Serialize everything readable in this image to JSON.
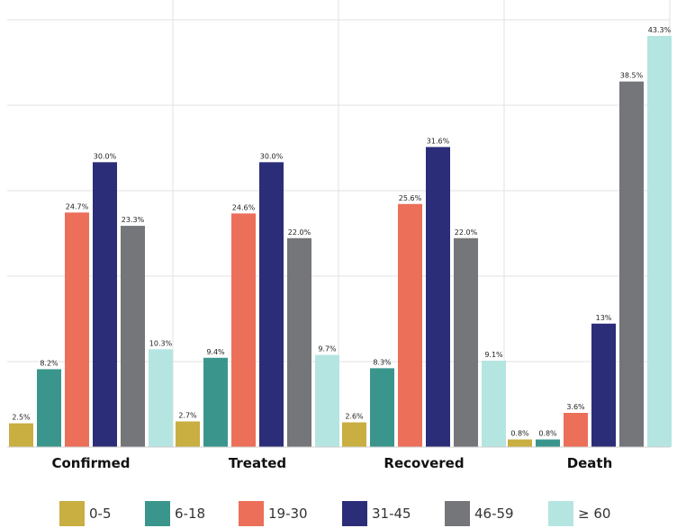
{
  "chart_data": {
    "type": "bar",
    "categories": [
      "Confirmed",
      "Treated",
      "Recovered",
      "Death"
    ],
    "series": [
      {
        "name": "0-5",
        "color": "#c9ae42",
        "values": [
          2.5,
          2.7,
          2.6,
          0.8
        ],
        "labels": [
          "2.5%",
          "2.7%",
          "2.6%",
          "0.8%"
        ]
      },
      {
        "name": "6-18",
        "color": "#3a968c",
        "values": [
          8.2,
          9.4,
          8.3,
          0.8
        ],
        "labels": [
          "8.2%",
          "9.4%",
          "8.3%",
          "0.8%"
        ]
      },
      {
        "name": "19-30",
        "color": "#ec6f59",
        "values": [
          24.7,
          24.6,
          25.6,
          3.6
        ],
        "labels": [
          "24.7%",
          "24.6%",
          "25.6%",
          "3.6%"
        ]
      },
      {
        "name": "31-45",
        "color": "#2c2d78",
        "values": [
          30.0,
          30.0,
          31.6,
          13
        ],
        "labels": [
          "30.0%",
          "30.0%",
          "31.6%",
          "13%"
        ]
      },
      {
        "name": "46-59",
        "color": "#75767a",
        "values": [
          23.3,
          22.0,
          22.0,
          38.5
        ],
        "labels": [
          "23.3%",
          "22.0%",
          "22.0%",
          "38.5%"
        ]
      },
      {
        "name": "≥ 60",
        "color": "#b5e5e0",
        "values": [
          10.3,
          9.7,
          9.1,
          43.3
        ],
        "labels": [
          "10.3%",
          "9.7%",
          "9.1%",
          "43.3%"
        ]
      }
    ],
    "ylim": [
      0,
      45
    ],
    "grid": true,
    "legend": "bottom"
  }
}
